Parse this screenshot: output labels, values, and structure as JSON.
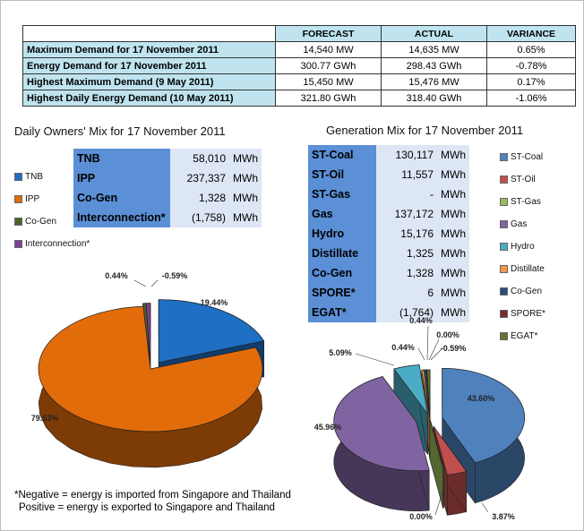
{
  "summary": {
    "headers": [
      "",
      "FORECAST",
      "ACTUAL",
      "VARIANCE"
    ],
    "rows": [
      {
        "label": "Maximum Demand for 17 November 2011",
        "forecast": "14,540 MW",
        "actual": "14,635 MW",
        "variance": "0.65%"
      },
      {
        "label": "Energy Demand for 17 November 2011",
        "forecast": "300.77 GWh",
        "actual": "298.43 GWh",
        "variance": "-0.78%"
      },
      {
        "label": "Highest Maximum Demand (9 May 2011)",
        "forecast": "15,450 MW",
        "actual": "15,476 MW",
        "variance": "0.17%"
      },
      {
        "label": "Highest Daily Energy Demand (10 May 2011)",
        "forecast": "321.80 GWh",
        "actual": "318.40 GWh",
        "variance": "-1.06%"
      }
    ]
  },
  "owners": {
    "title": "Daily Owners' Mix for 17 November 2011",
    "table": [
      {
        "name": "TNB",
        "value": "58,010",
        "unit": "MWh"
      },
      {
        "name": "IPP",
        "value": "237,337",
        "unit": "MWh"
      },
      {
        "name": "Co-Gen",
        "value": "1,328",
        "unit": "MWh"
      },
      {
        "name": "Interconnection*",
        "value": "(1,758)",
        "unit": "MWh"
      }
    ],
    "legend": [
      {
        "label": "TNB",
        "color": "#1f6fc4"
      },
      {
        "label": "IPP",
        "color": "#e36c0a"
      },
      {
        "label": "Co-Gen",
        "color": "#4f6228"
      },
      {
        "label": "Interconnection*",
        "color": "#7f3f98"
      }
    ]
  },
  "generation": {
    "title": "Generation Mix for 17 November 2011",
    "table": [
      {
        "name": "ST-Coal",
        "value": "130,117",
        "unit": "MWh"
      },
      {
        "name": "ST-Oil",
        "value": "11,557",
        "unit": "MWh"
      },
      {
        "name": "ST-Gas",
        "value": "-",
        "unit": "MWh"
      },
      {
        "name": "Gas",
        "value": "137,172",
        "unit": "MWh"
      },
      {
        "name": "Hydro",
        "value": "15,176",
        "unit": "MWh"
      },
      {
        "name": "Distillate",
        "value": "1,325",
        "unit": "MWh"
      },
      {
        "name": "Co-Gen",
        "value": "1,328",
        "unit": "MWh"
      },
      {
        "name": "SPORE*",
        "value": "6",
        "unit": "MWh"
      },
      {
        "name": "EGAT*",
        "value": "(1,764)",
        "unit": "MWh"
      }
    ],
    "legend": [
      {
        "label": "ST-Coal",
        "color": "#4f81bd"
      },
      {
        "label": "ST-Oil",
        "color": "#c0504d"
      },
      {
        "label": "ST-Gas",
        "color": "#9bbb59"
      },
      {
        "label": "Gas",
        "color": "#8064a2"
      },
      {
        "label": "Hydro",
        "color": "#4bacc6"
      },
      {
        "label": "Distillate",
        "color": "#f79646"
      },
      {
        "label": "Co-Gen",
        "color": "#2c4d75"
      },
      {
        "label": "SPORE*",
        "color": "#772c2a"
      },
      {
        "label": "EGAT*",
        "color": "#5f7530"
      }
    ]
  },
  "note": {
    "line1": "*Negative = energy is imported from Singapore and Thailand",
    "line2": "Positive = energy is exported to Singapore and Thailand"
  },
  "chart_data": [
    {
      "type": "pie",
      "title": "Daily Owners' Mix for 17 November 2011",
      "categories": [
        "TNB",
        "IPP",
        "Co-Gen",
        "Interconnection*"
      ],
      "values": [
        19.44,
        79.53,
        0.44,
        -0.59
      ],
      "labels": [
        "19.44%",
        "79.53%",
        "0.44%",
        "-0.59%"
      ],
      "colors": [
        "#1f6fc4",
        "#e36c0a",
        "#4f6228",
        "#7f3f98"
      ]
    },
    {
      "type": "pie",
      "title": "Generation Mix for 17 November 2011",
      "categories": [
        "ST-Coal",
        "ST-Oil",
        "ST-Gas",
        "Gas",
        "Hydro",
        "Distillate",
        "Co-Gen",
        "SPORE*",
        "EGAT*"
      ],
      "values": [
        43.6,
        3.87,
        0.0,
        45.96,
        5.09,
        0.44,
        0.44,
        0.0,
        -0.59
      ],
      "labels": [
        "43.60%",
        "3.87%",
        "0.00%",
        "45.96%",
        "5.09%",
        "0.44%",
        "0.44%",
        "0.00%",
        "-0.59%"
      ],
      "colors": [
        "#4f81bd",
        "#c0504d",
        "#9bbb59",
        "#8064a2",
        "#4bacc6",
        "#f79646",
        "#2c4d75",
        "#772c2a",
        "#5f7530"
      ]
    }
  ]
}
